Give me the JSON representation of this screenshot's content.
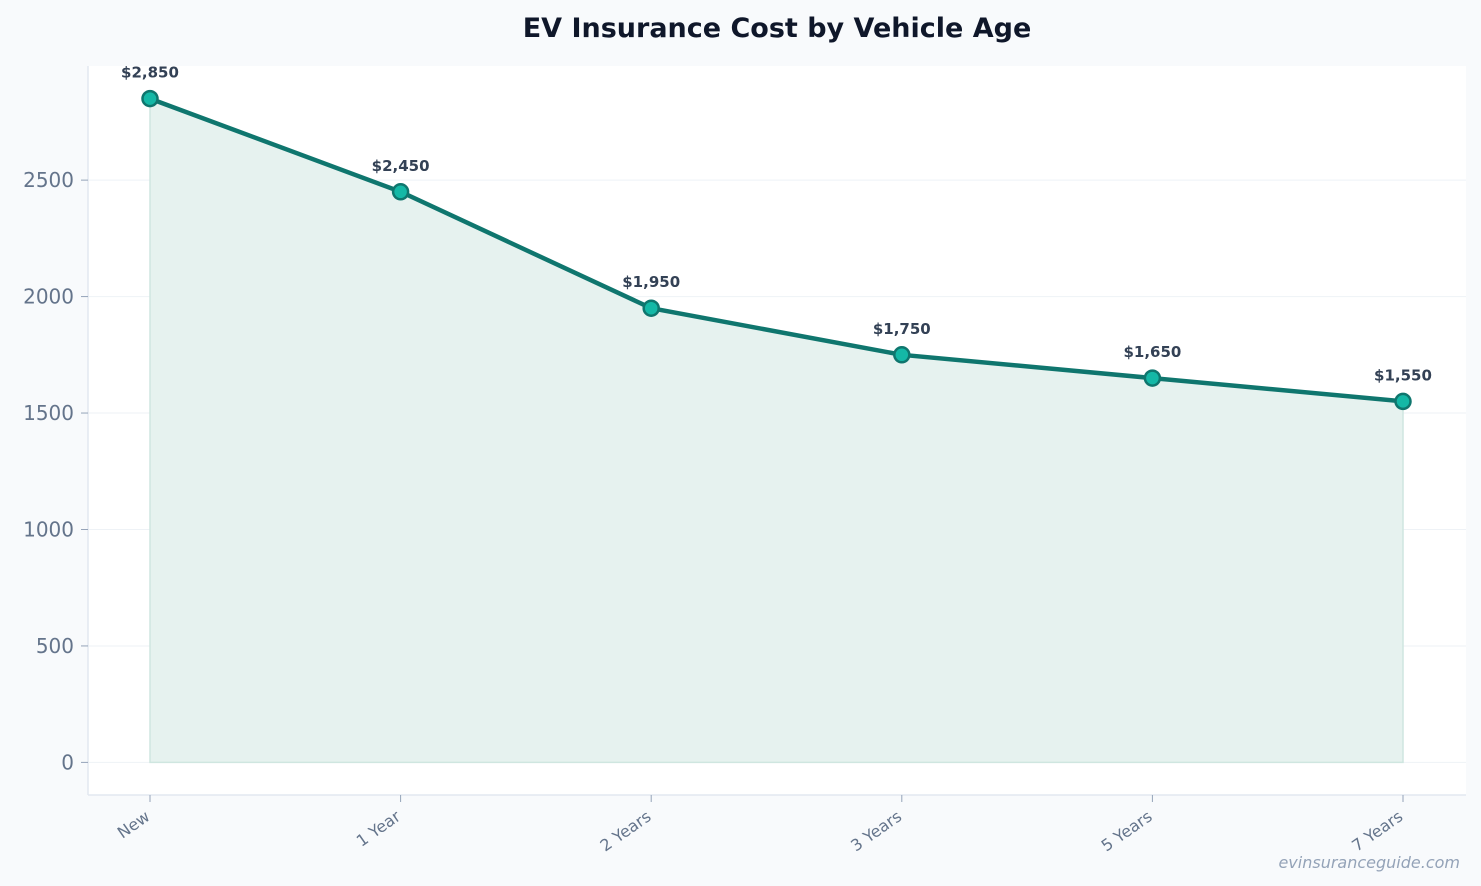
{
  "chart_data": {
    "type": "area",
    "title": "EV Insurance Cost by Vehicle Age",
    "xlabel": "",
    "ylabel": "",
    "categories": [
      "New",
      "1 Year",
      "2 Years",
      "3 Years",
      "5 Years",
      "7 Years"
    ],
    "values": [
      2850,
      2450,
      1950,
      1750,
      1650,
      1550
    ],
    "data_labels": [
      "$2,850",
      "$2,450",
      "$1,950",
      "$1,750",
      "$1,650",
      "$1,550"
    ],
    "ylim": [
      -140,
      2990
    ],
    "yticks": [
      0,
      500,
      1000,
      1500,
      2000,
      2500
    ],
    "grid": true,
    "colors": {
      "line": "#0f766e",
      "marker_fill": "#14b8a6",
      "area_fill": "#e6f2ef",
      "area_edge": "#cfe6e0"
    }
  },
  "watermark": "evinsuranceguide.com"
}
